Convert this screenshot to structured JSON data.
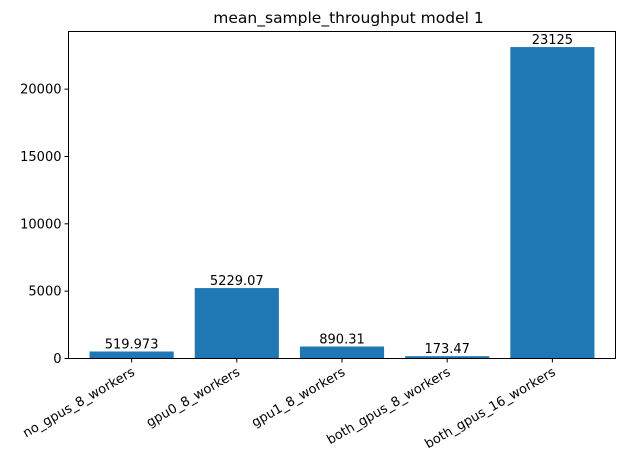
{
  "chart_data": {
    "type": "bar",
    "title": "mean_sample_throughput model 1",
    "xlabel": "",
    "ylabel": "",
    "categories": [
      "no_gpus_8_workers",
      "gpu0_8_workers",
      "gpu1_8_workers",
      "both_gpus_8_workers",
      "both_gpus_16_workers"
    ],
    "values": [
      519.973,
      5229.07,
      890.31,
      173.47,
      23125
    ],
    "value_labels": [
      "519.973",
      "5229.07",
      "890.31",
      "173.47",
      "23125"
    ],
    "ylim": [
      0,
      24281
    ],
    "yticks": [
      0,
      5000,
      10000,
      15000,
      20000
    ],
    "ytick_labels": [
      "0",
      "5000",
      "10000",
      "15000",
      "20000"
    ],
    "bar_color": "#1f77b4",
    "grid": false,
    "legend": "none"
  }
}
